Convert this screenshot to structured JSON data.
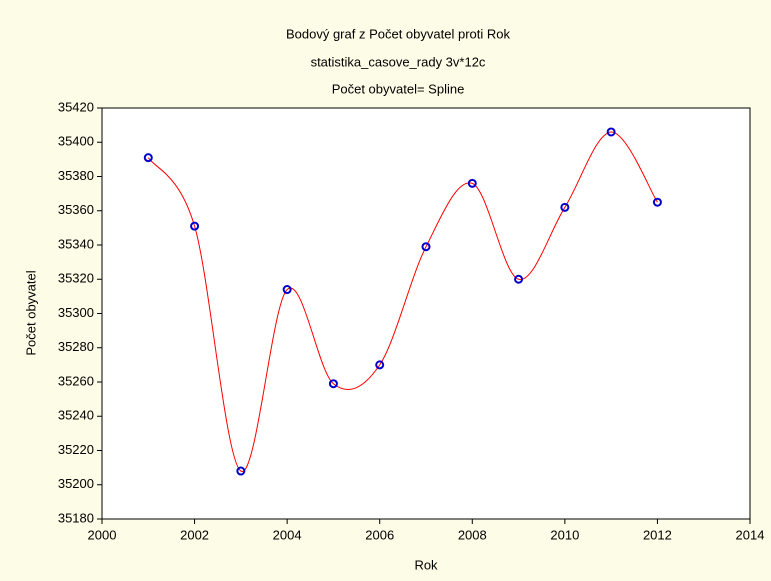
{
  "chart_data": {
    "type": "scatter",
    "title": "Bodový graf z Počet obyvatel proti Rok",
    "subtitle": "statistika_casove_rady 3v*12c",
    "fit_label": "Počet obyvatel= Spline",
    "xlabel": "Rok",
    "ylabel": "Počet obyvatel",
    "x": [
      2001,
      2002,
      2003,
      2004,
      2005,
      2006,
      2007,
      2008,
      2009,
      2010,
      2011,
      2012
    ],
    "values": [
      35391,
      35351,
      35208,
      35314,
      35259,
      35270,
      35339,
      35376,
      35320,
      35362,
      35406,
      35365
    ],
    "color": "#0000cc",
    "line_color": "#ff0000",
    "xlim": [
      2000,
      2014
    ],
    "xticks": [
      2000,
      2002,
      2004,
      2006,
      2008,
      2010,
      2012,
      2014
    ],
    "ylim": [
      35180,
      35420
    ],
    "yticks": [
      35180,
      35200,
      35220,
      35240,
      35260,
      35280,
      35300,
      35320,
      35340,
      35360,
      35380,
      35400,
      35420
    ],
    "grid": false
  }
}
